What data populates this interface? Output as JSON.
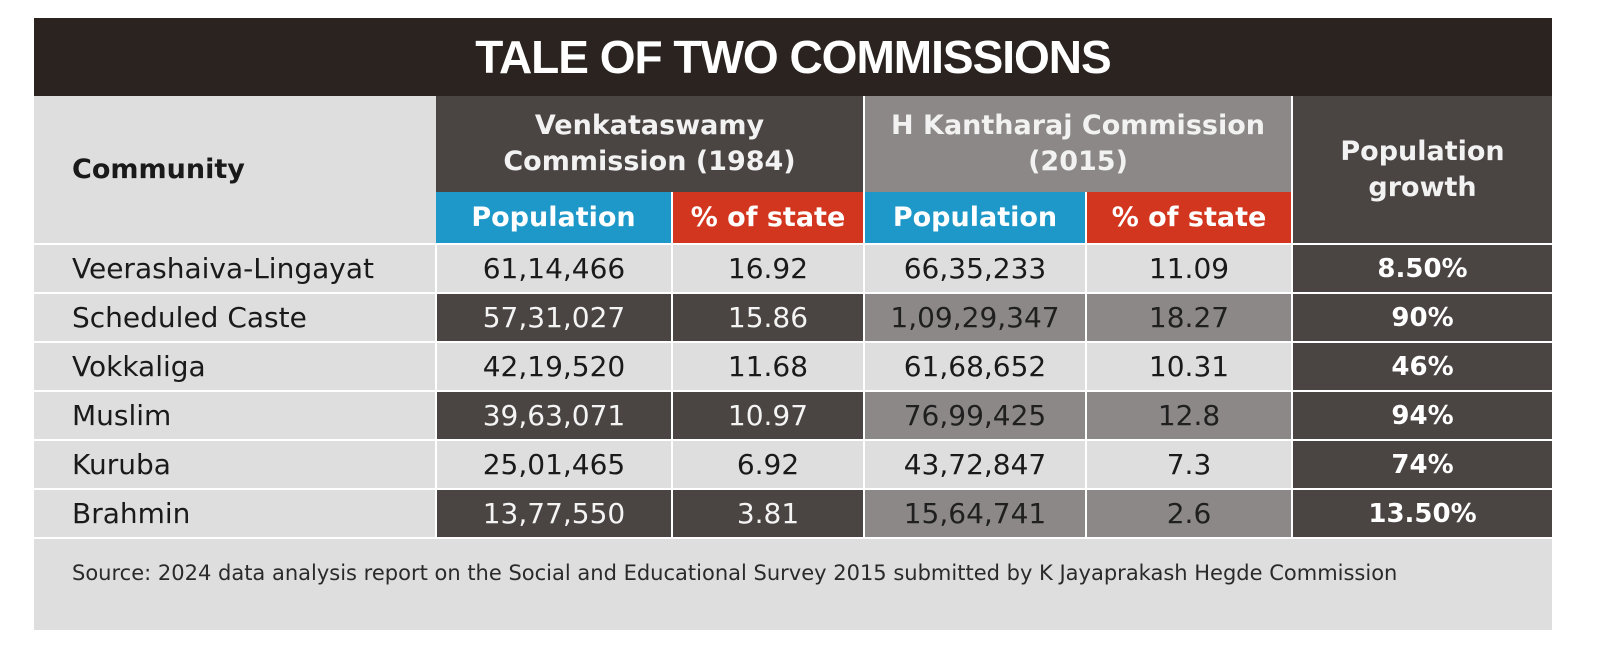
{
  "title": "TALE OF TWO COMMISSIONS",
  "headers": {
    "community": "Community",
    "venkataswamy_line1": "Venkataswamy",
    "venkataswamy_line2": "Commission (1984)",
    "kantharaj_line1": "H Kantharaj Commission",
    "kantharaj_line2": "(2015)",
    "growth_line1": "Population",
    "growth_line2": "growth",
    "population": "Population",
    "pct_state": "% of state"
  },
  "colors": {
    "title_bar": "#2a2320",
    "population_header": "#1e98c8",
    "pct_header": "#d3361f",
    "dark_cell": "#4a4442",
    "mid_cell": "#8c8887",
    "light_cell": "#dedede"
  },
  "chart_data": {
    "type": "table",
    "title": "TALE OF TWO COMMISSIONS",
    "columns": [
      "Community",
      "Venkataswamy Commission (1984) Population",
      "Venkataswamy Commission (1984) % of state",
      "H Kantharaj Commission (2015) Population",
      "H Kantharaj Commission (2015) % of state",
      "Population growth"
    ],
    "rows": [
      {
        "community": "Veerashaiva-Lingayat",
        "v_pop": "61,14,466",
        "v_pct": "16.92",
        "k_pop": "66,35,233",
        "k_pct": "11.09",
        "growth": "8.50%"
      },
      {
        "community": "Scheduled Caste",
        "v_pop": "57,31,027",
        "v_pct": "15.86",
        "k_pop": "1,09,29,347",
        "k_pct": "18.27",
        "growth": "90%"
      },
      {
        "community": "Vokkaliga",
        "v_pop": "42,19,520",
        "v_pct": "11.68",
        "k_pop": "61,68,652",
        "k_pct": "10.31",
        "growth": "46%"
      },
      {
        "community": "Muslim",
        "v_pop": "39,63,071",
        "v_pct": "10.97",
        "k_pop": "76,99,425",
        "k_pct": "12.8",
        "growth": "94%"
      },
      {
        "community": "Kuruba",
        "v_pop": "25,01,465",
        "v_pct": "6.92",
        "k_pop": "43,72,847",
        "k_pct": "7.3",
        "growth": "74%"
      },
      {
        "community": "Brahmin",
        "v_pop": "13,77,550",
        "v_pct": "3.81",
        "k_pop": "15,64,741",
        "k_pct": "2.6",
        "growth": "13.50%"
      }
    ]
  },
  "source": "Source: 2024 data analysis report on the Social and Educational Survey 2015 submitted by K Jayaprakash Hegde Commission"
}
